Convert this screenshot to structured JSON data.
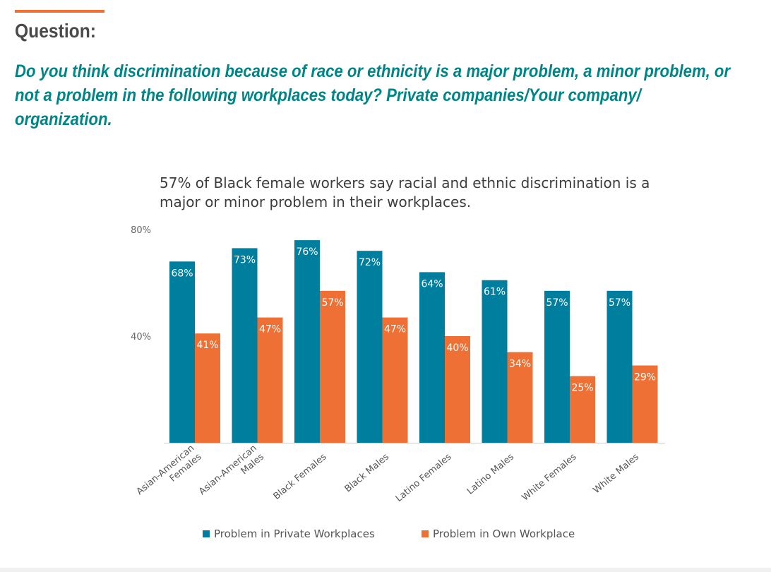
{
  "header": {
    "heading": "Question:",
    "question": "Do you think discrimination because of race or ethnicity is a major problem, a minor problem, or not a problem in the following workplaces today? Private companies/Your company/ organization."
  },
  "colors": {
    "accent": "#ef7034",
    "question_text": "#008586",
    "series_private": "#007e9e",
    "series_own": "#ef7034"
  },
  "chart_data": {
    "type": "bar",
    "title": "57% of Black female workers say racial and ethnic discrimination is a major or minor problem in their workplaces.",
    "categories": [
      [
        "Asian-American",
        "Females"
      ],
      [
        "Asian-American",
        "Males"
      ],
      [
        "Black Females"
      ],
      [
        "Black Males"
      ],
      [
        "Latino Females"
      ],
      [
        "Latino Males"
      ],
      [
        "White Females"
      ],
      [
        "White Males"
      ]
    ],
    "series": [
      {
        "name": "Problem in Private Workplaces",
        "color": "#007e9e",
        "values": [
          68,
          73,
          76,
          72,
          64,
          61,
          57,
          57
        ]
      },
      {
        "name": "Problem in Own Workplace",
        "color": "#ef7034",
        "values": [
          41,
          47,
          57,
          47,
          40,
          34,
          25,
          29
        ]
      }
    ],
    "value_suffix": "%",
    "ylim": [
      0,
      80
    ],
    "yticks": [
      {
        "value": 40,
        "label": "40%"
      },
      {
        "value": 80,
        "label": "80%"
      }
    ],
    "grid": false,
    "legend_position": "bottom"
  }
}
